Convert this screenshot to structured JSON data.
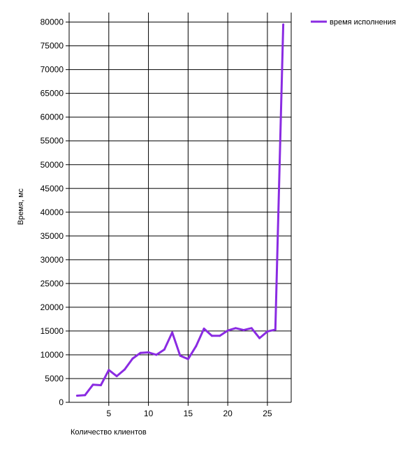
{
  "chart_data": {
    "type": "line",
    "xlabel": "Количество клиентов",
    "ylabel": "Время, мс",
    "xlim": [
      0,
      28
    ],
    "ylim": [
      0,
      80000
    ],
    "x_ticks": [
      5,
      10,
      15,
      20,
      25
    ],
    "y_ticks": [
      0,
      5000,
      10000,
      15000,
      20000,
      25000,
      30000,
      35000,
      40000,
      45000,
      50000,
      55000,
      60000,
      65000,
      70000,
      75000,
      80000
    ],
    "grid": true,
    "legend_position": "top-right",
    "series": [
      {
        "name": "время исполнения",
        "color": "#8a2be2",
        "x": [
          1,
          2,
          3,
          4,
          5,
          6,
          7,
          8,
          9,
          10,
          11,
          12,
          13,
          14,
          15,
          16,
          17,
          18,
          19,
          20,
          21,
          22,
          23,
          24,
          25,
          26,
          27
        ],
        "y": [
          1400,
          1500,
          3700,
          3600,
          6800,
          5500,
          6900,
          9200,
          10400,
          10500,
          10000,
          11100,
          14700,
          9800,
          9100,
          11800,
          15500,
          14000,
          14000,
          15100,
          15600,
          15200,
          15600,
          13500,
          14900,
          15300,
          79500
        ]
      }
    ]
  }
}
